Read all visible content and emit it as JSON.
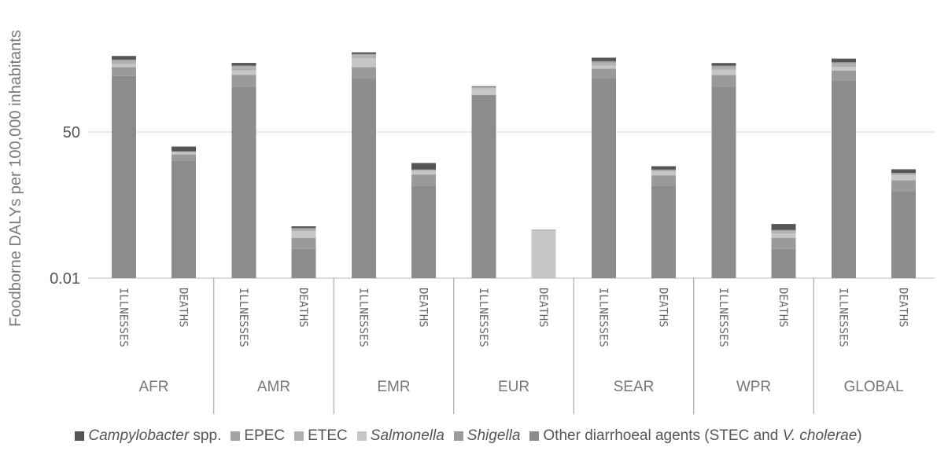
{
  "chart_data": {
    "type": "bar",
    "stacked": true,
    "ylabel": "Foodborne DALYs per 100,000 inhabitants",
    "y_scale": "log",
    "y_ticks": [
      "50",
      "0.01"
    ],
    "grid": true,
    "legend_position": "bottom",
    "groups": [
      "AFR",
      "AMR",
      "EMR",
      "EUR",
      "SEAR",
      "WPR",
      "GLOBAL"
    ],
    "categories": [
      "ILLNESSES",
      "DEATHS"
    ],
    "series": [
      {
        "name": "Other diarrhoeal agents (STEC and V. cholerae)",
        "color": "#8c8c8c",
        "values": [
          [
            1300,
            9.5
          ],
          [
            700,
            0.055
          ],
          [
            1100,
            2.2
          ],
          [
            430,
            0.01
          ],
          [
            1100,
            2.2
          ],
          [
            680,
            0.055
          ],
          [
            1000,
            1.6
          ]
        ]
      },
      {
        "name": "Shigella",
        "color": "#9a9a9a",
        "values": [
          [
            900,
            4.0
          ],
          [
            700,
            0.05
          ],
          [
            1100,
            2.0
          ],
          [
            0,
            0
          ],
          [
            900,
            1.8
          ],
          [
            700,
            0.05
          ],
          [
            800,
            1.4
          ]
        ]
      },
      {
        "name": "Salmonella",
        "color": "#c6c6c6",
        "values": [
          [
            400,
            1.5
          ],
          [
            400,
            0.05
          ],
          [
            1500,
            1.0
          ],
          [
            200,
            0.15
          ],
          [
            400,
            1.0
          ],
          [
            500,
            0.03
          ],
          [
            400,
            1.0
          ]
        ]
      },
      {
        "name": "ETEC",
        "color": "#b0b0b0",
        "values": [
          [
            500,
            0.8
          ],
          [
            400,
            0.02
          ],
          [
            700,
            0.2
          ],
          [
            40,
            0.01
          ],
          [
            400,
            0.3
          ],
          [
            300,
            0.02
          ],
          [
            400,
            0.3
          ]
        ]
      },
      {
        "name": "EPEC",
        "color": "#a4a4a4",
        "values": [
          [
            300,
            0.4
          ],
          [
            200,
            0.01
          ],
          [
            300,
            0.2
          ],
          [
            20,
            0
          ],
          [
            300,
            0.3
          ],
          [
            200,
            0.01
          ],
          [
            300,
            0.3
          ]
        ]
      },
      {
        "name": "Campylobacter spp.",
        "color": "#555555",
        "values": [
          [
            800,
            5.2
          ],
          [
            400,
            0.02
          ],
          [
            500,
            2.6
          ],
          [
            30,
            0
          ],
          [
            700,
            1.2
          ],
          [
            400,
            0.07
          ],
          [
            700,
            1.1
          ]
        ]
      }
    ]
  },
  "legend": {
    "campylobacter": {
      "italic": "Campylobacter",
      "rest": " spp."
    },
    "epec": "EPEC",
    "etec": "ETEC",
    "salmonella": "Salmonella",
    "shigella": "Shigella",
    "other": {
      "pre": "Other diarrhoeal agents (STEC and ",
      "italic": "V. cholerae",
      "post": ")"
    }
  }
}
